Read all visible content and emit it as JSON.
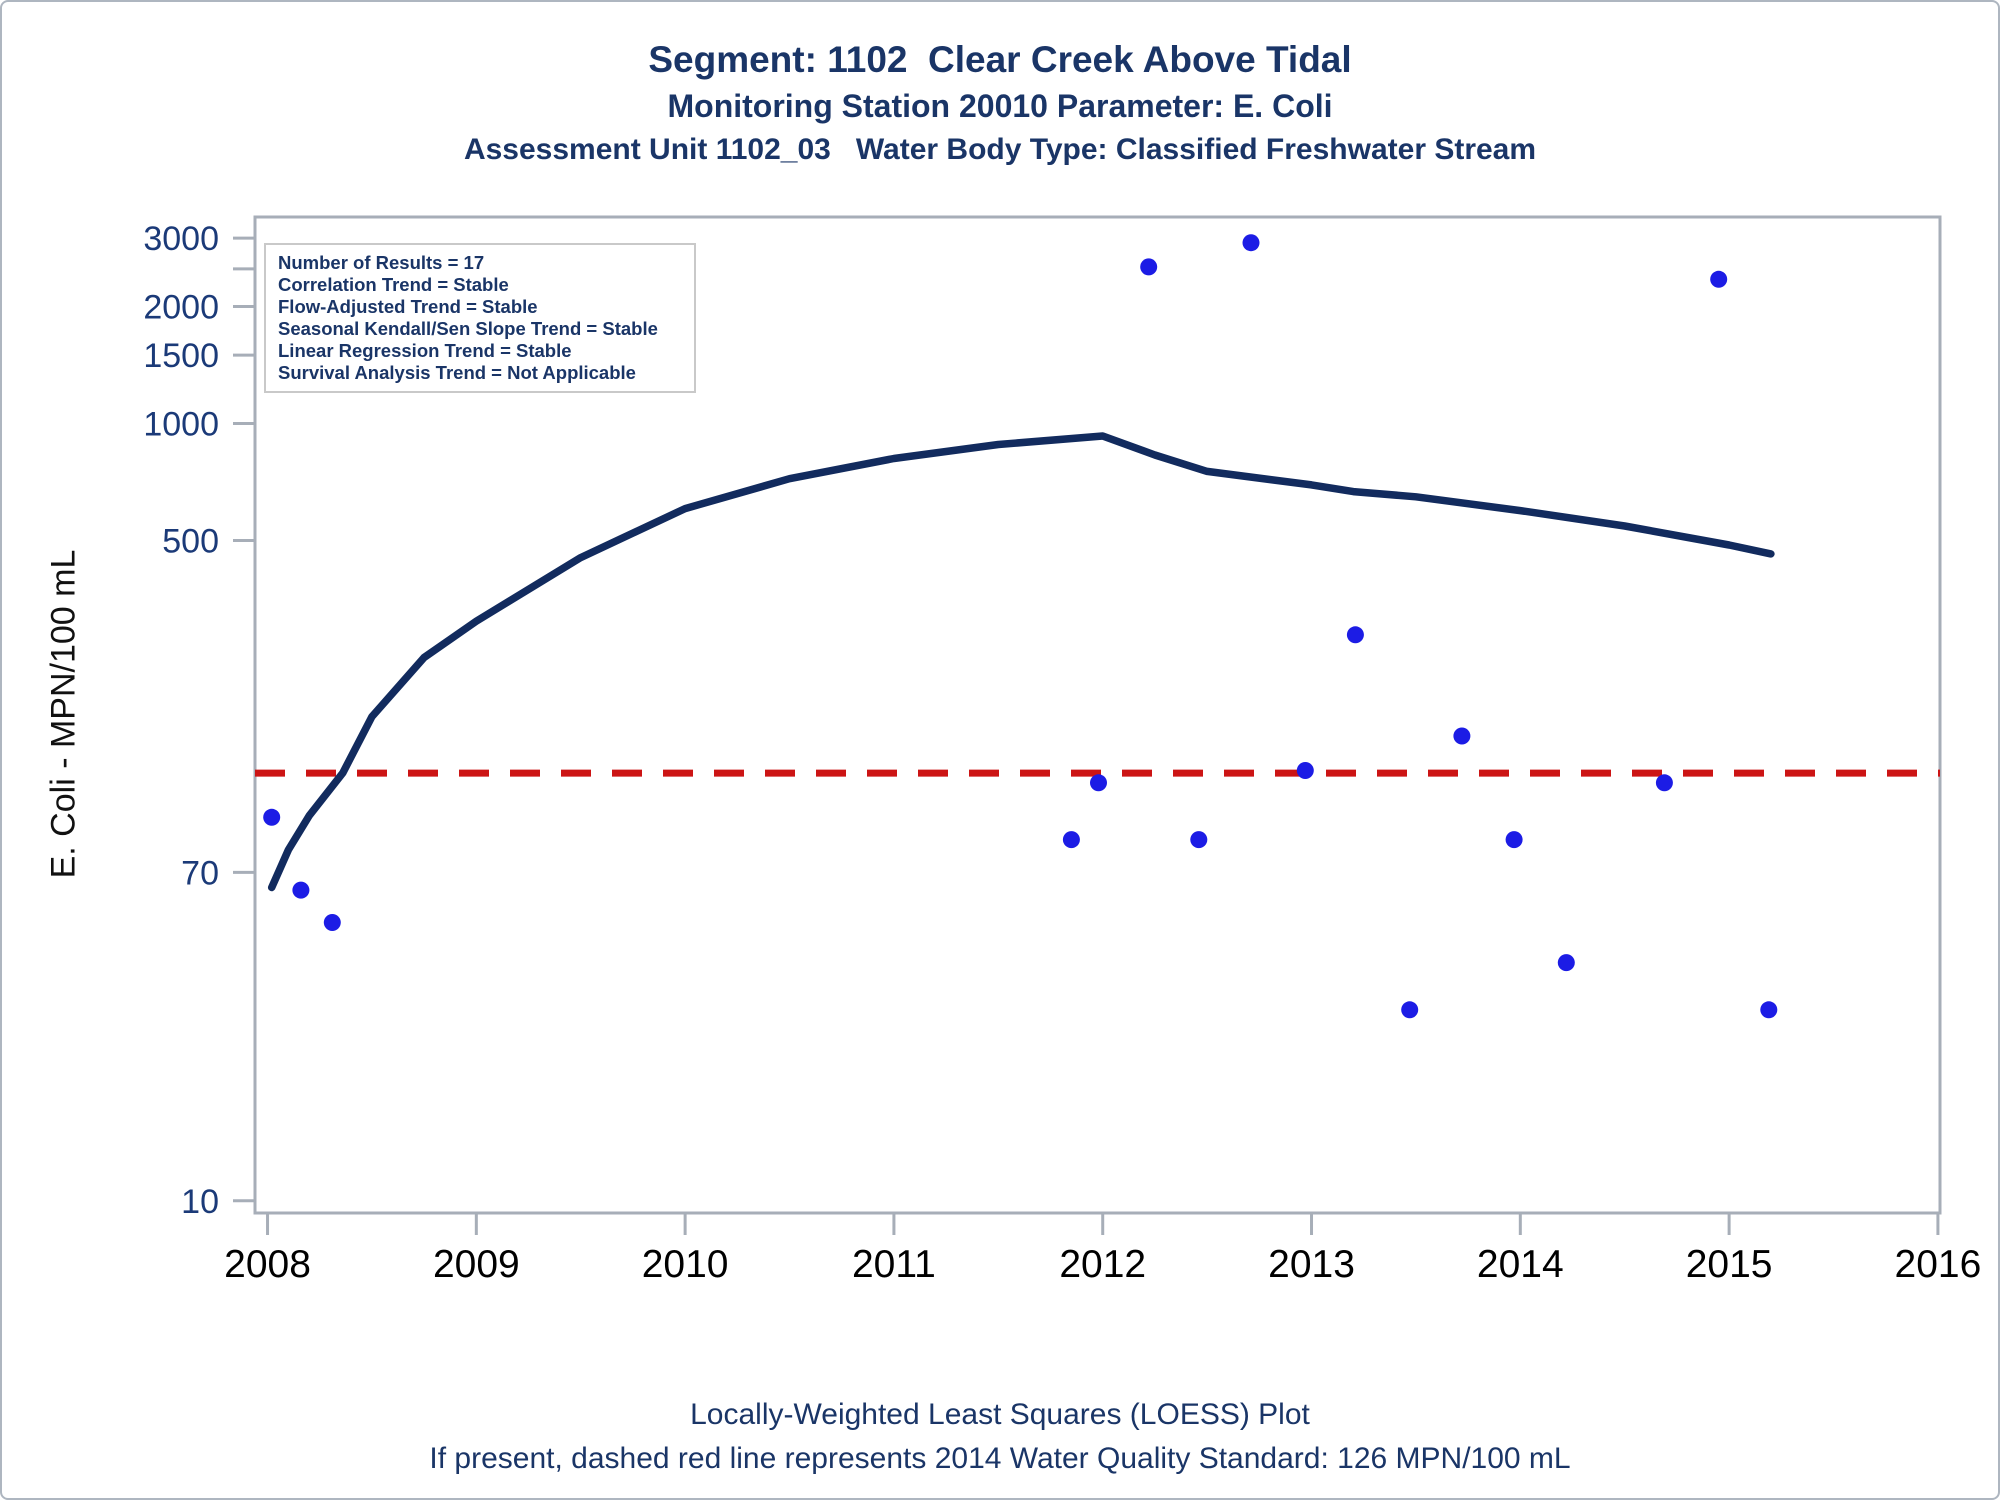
{
  "chart_data": {
    "type": "scatter",
    "titles": [
      "Segment: 1102  Clear Creek Above Tidal",
      "Monitoring Station 20010 Parameter: E. Coli",
      "Assessment Unit 1102_03   Water Body Type: Classified Freshwater Stream"
    ],
    "ylabel": "E. Coli - MPN/100 mL",
    "xlabel": "",
    "y_scale": "log",
    "ylim": [
      9.3,
      3400
    ],
    "xlim": [
      2007.94,
      2016.01
    ],
    "grid": false,
    "x_ticks": [
      "2008",
      "2009",
      "2010",
      "2011",
      "2012",
      "2013",
      "2014",
      "2015",
      "2016"
    ],
    "x_tick_values": [
      2008,
      2009,
      2010,
      2011,
      2012,
      2013,
      2014,
      2015,
      2016
    ],
    "y_ticks": [
      {
        "value": 3000,
        "label": "3000"
      },
      {
        "value": 2500,
        "label": ""
      },
      {
        "value": 2000,
        "label": "2000"
      },
      {
        "value": 1500,
        "label": "1500"
      },
      {
        "value": 1000,
        "label": "1000"
      },
      {
        "value": 500,
        "label": "500"
      },
      {
        "value": 70,
        "label": "70"
      },
      {
        "value": 10,
        "label": "10"
      }
    ],
    "stats_box": [
      "Number of Results = 17",
      "Correlation Trend = Stable",
      "Flow-Adjusted Trend = Stable",
      "Seasonal Kendall/Sen Slope Trend = Stable",
      "Linear Regression Trend = Stable",
      "Survival Analysis Trend = Not Applicable"
    ],
    "reference_line": {
      "value": 126,
      "style": "dashed",
      "meaning": "2014 Water Quality Standard: 126 MPN/100 mL"
    },
    "series": [
      {
        "name": "E. Coli samples",
        "type": "scatter",
        "points": [
          [
            2008.02,
            97
          ],
          [
            2008.16,
            63
          ],
          [
            2008.31,
            52
          ],
          [
            2011.85,
            85
          ],
          [
            2011.98,
            119
          ],
          [
            2012.22,
            2530
          ],
          [
            2012.46,
            85
          ],
          [
            2012.71,
            2920
          ],
          [
            2012.97,
            128
          ],
          [
            2013.21,
            286
          ],
          [
            2013.47,
            31
          ],
          [
            2013.72,
            157
          ],
          [
            2013.97,
            85
          ],
          [
            2014.22,
            41
          ],
          [
            2014.69,
            119
          ],
          [
            2014.95,
            2350
          ],
          [
            2015.19,
            31
          ]
        ]
      },
      {
        "name": "LOESS trend",
        "type": "line",
        "points": [
          [
            2008.02,
            64
          ],
          [
            2008.1,
            80
          ],
          [
            2008.2,
            98
          ],
          [
            2008.36,
            126
          ],
          [
            2008.5,
            176
          ],
          [
            2008.75,
            250
          ],
          [
            2009.0,
            310
          ],
          [
            2009.5,
            452
          ],
          [
            2010.0,
            604
          ],
          [
            2010.5,
            721
          ],
          [
            2011.0,
            813
          ],
          [
            2011.5,
            883
          ],
          [
            2012.0,
            929
          ],
          [
            2012.25,
            830
          ],
          [
            2012.5,
            753
          ],
          [
            2013.0,
            695
          ],
          [
            2013.2,
            668
          ],
          [
            2013.5,
            648
          ],
          [
            2014.0,
            597
          ],
          [
            2014.5,
            545
          ],
          [
            2015.0,
            487
          ],
          [
            2015.2,
            462
          ]
        ]
      }
    ],
    "footnotes": [
      "Locally-Weighted Least Squares (LOESS) Plot",
      "If present, dashed red line represents 2014 Water Quality Standard: 126 MPN/100 mL"
    ]
  },
  "colors": {
    "title_navy": "#1a3567",
    "y_tick_navy": "#1b3a78",
    "x_tick_black": "#000000",
    "curve_navy": "#122b5e",
    "point_blue": "#1c1ce5",
    "standard_red": "#cc1414",
    "frame_gray": "#a7aeb8"
  }
}
